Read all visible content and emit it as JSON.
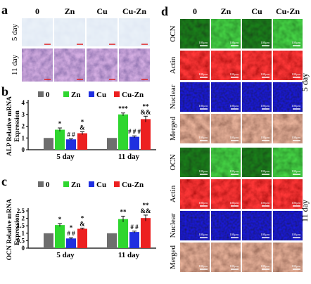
{
  "panels": {
    "a": {
      "letter": "a",
      "columns": [
        "0",
        "Zn",
        "Cu",
        "Cu-Zn"
      ],
      "rows": [
        "5 day",
        "11 day"
      ],
      "scale_bar": "100μm"
    },
    "d": {
      "letter": "d",
      "columns": [
        "0",
        "Zn",
        "Cu",
        "Cu-Zn"
      ],
      "groups": [
        {
          "day": "5 day",
          "rows": [
            "OCN",
            "Actin",
            "Nuclear",
            "Merged"
          ]
        },
        {
          "day": "11 day",
          "rows": [
            "OCN",
            "Actin",
            "Nuclear",
            "Merged"
          ]
        }
      ],
      "scale_bar": "100μm"
    }
  },
  "colors": {
    "0": "#6e6e6e",
    "Zn": "#2fd62f",
    "Cu": "#1f2fe0",
    "Cu-Zn": "#ec2020"
  },
  "chart_data": [
    {
      "panel": "b",
      "type": "bar",
      "ylabel": "ALP Relative mRNA Expression",
      "categories": [
        "5 day",
        "11 day"
      ],
      "legend": [
        "0",
        "Zn",
        "Cu",
        "Cu-Zn"
      ],
      "ylim": [
        0,
        4
      ],
      "yticks": [
        "0",
        "1",
        "2",
        "3",
        "4"
      ],
      "series": [
        {
          "name": "0",
          "values": [
            1.0,
            1.0
          ],
          "errors": [
            0.0,
            0.0
          ]
        },
        {
          "name": "Zn",
          "values": [
            1.7,
            3.0
          ],
          "errors": [
            0.15,
            0.12
          ]
        },
        {
          "name": "Cu",
          "values": [
            0.88,
            1.1
          ],
          "errors": [
            0.05,
            0.08
          ]
        },
        {
          "name": "Cu-Zn",
          "values": [
            1.4,
            2.6
          ],
          "errors": [
            0.12,
            0.25
          ]
        }
      ],
      "annotations": [
        [
          "",
          "*",
          "# #",
          "*\n&"
        ],
        [
          "",
          "***",
          "# # #",
          "**\n&&"
        ]
      ]
    },
    {
      "panel": "c",
      "type": "bar",
      "ylabel": "OCN Relative mRNA Expression",
      "categories": [
        "5 day",
        "11 day"
      ],
      "legend": [
        "0",
        "Zn",
        "Cu",
        "Cu-Zn"
      ],
      "ylim": [
        0,
        2.5
      ],
      "yticks": [
        "0",
        "0.5",
        "1",
        "1.5",
        "2",
        "2.5"
      ],
      "series": [
        {
          "name": "0",
          "values": [
            1.0,
            1.0
          ],
          "errors": [
            0.0,
            0.0
          ]
        },
        {
          "name": "Zn",
          "values": [
            1.55,
            1.95
          ],
          "errors": [
            0.1,
            0.2
          ]
        },
        {
          "name": "Cu",
          "values": [
            0.65,
            1.08
          ],
          "errors": [
            0.05,
            0.06
          ]
        },
        {
          "name": "Cu-Zn",
          "values": [
            1.3,
            2.02
          ],
          "errors": [
            0.05,
            0.2
          ]
        }
      ],
      "annotations": [
        [
          "",
          "*",
          "*\n# #",
          "*\n&"
        ],
        [
          "",
          "**",
          "# #",
          "**\n&&"
        ]
      ]
    }
  ]
}
